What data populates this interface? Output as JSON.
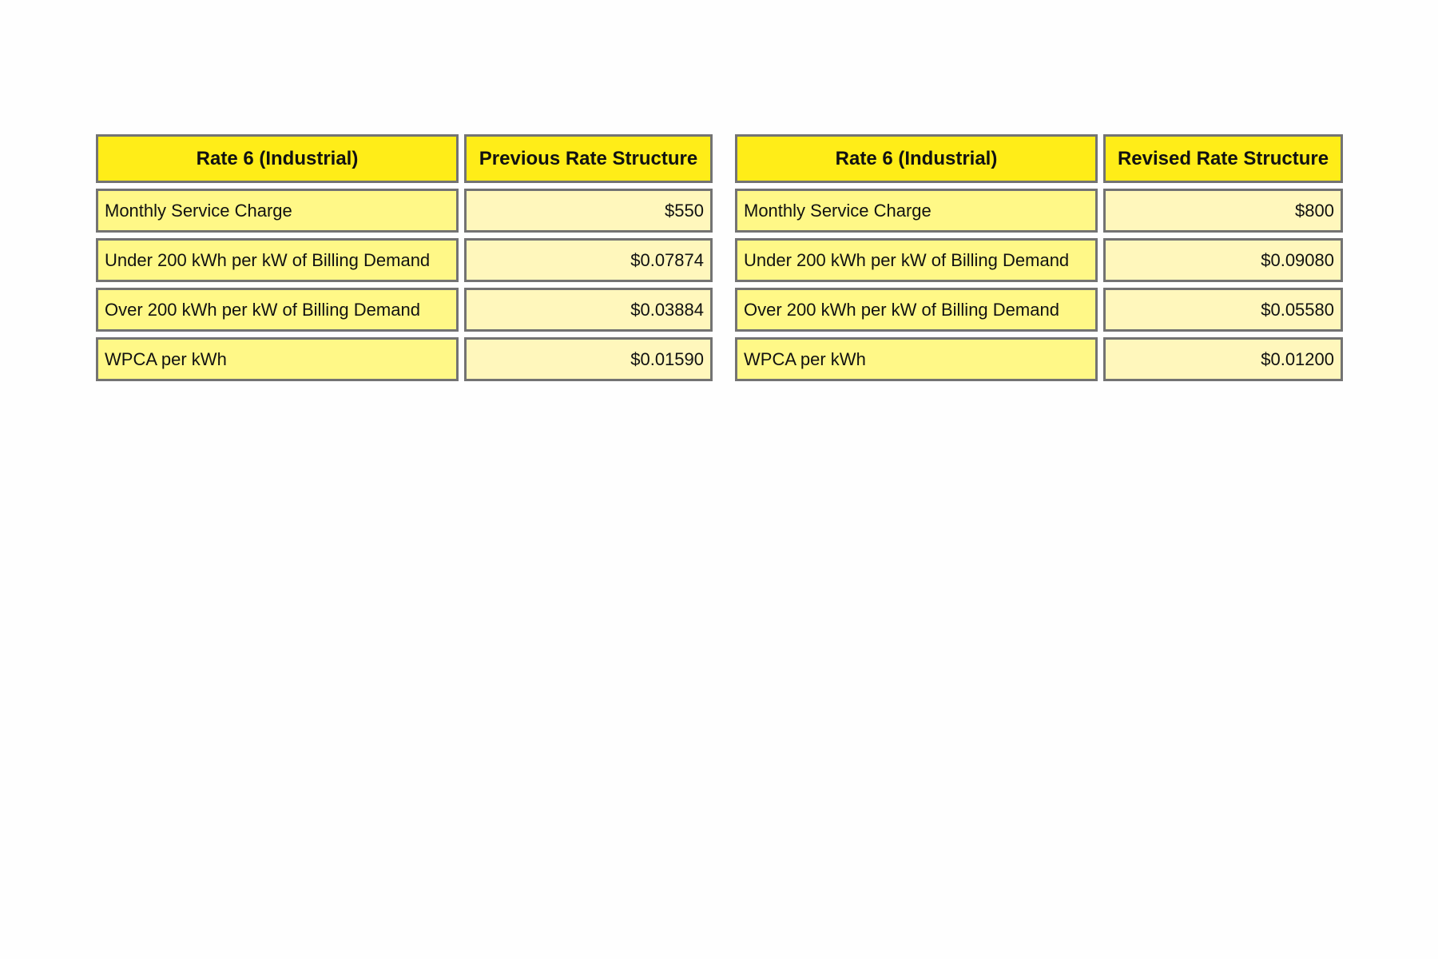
{
  "tables": [
    {
      "header": {
        "label": "Rate 6 (Industrial)",
        "value": "Previous Rate Structure"
      },
      "rows": [
        {
          "label": "Monthly Service Charge",
          "value": "$550"
        },
        {
          "label": "Under 200 kWh per kW of Billing Demand",
          "value": "$0.07874"
        },
        {
          "label": "Over 200 kWh per kW of Billing Demand",
          "value": "$0.03884"
        },
        {
          "label": "WPCA per kWh",
          "value": "$0.01590"
        }
      ]
    },
    {
      "header": {
        "label": "Rate 6 (Industrial)",
        "value": "Revised Rate Structure"
      },
      "rows": [
        {
          "label": "Monthly Service Charge",
          "value": "$800"
        },
        {
          "label": "Under 200 kWh per kW of Billing Demand",
          "value": "$0.09080"
        },
        {
          "label": "Over 200 kWh per kW of Billing Demand",
          "value": "$0.05580"
        },
        {
          "label": "WPCA per kWh",
          "value": "$0.01200"
        }
      ]
    }
  ],
  "colors": {
    "header": "#ffed18",
    "label_cell": "#fff887",
    "value_cell": "#fff7bc",
    "border": "#737373"
  }
}
